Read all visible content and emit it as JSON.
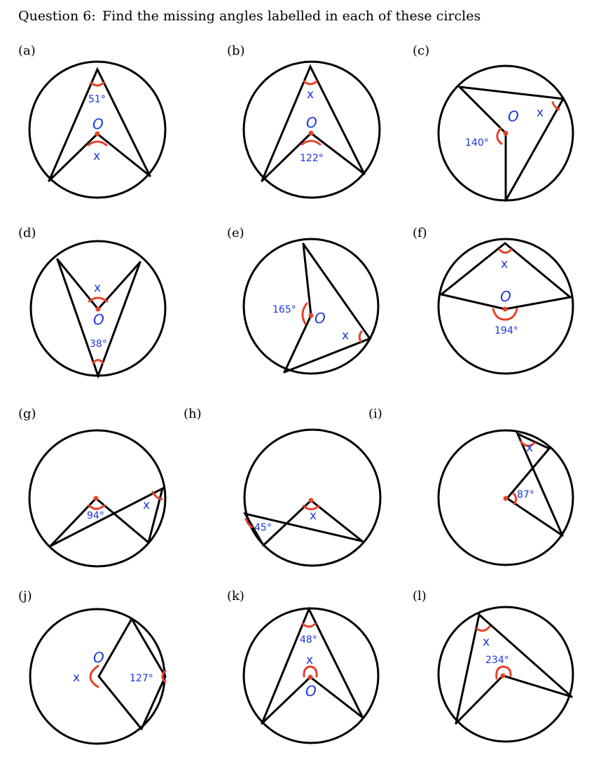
{
  "question": {
    "number": "Question 6:",
    "text": "Find the missing angles labelled in each of these circles"
  },
  "centre_label": "O",
  "unknown_label": "x",
  "parts": [
    {
      "label": "(a)",
      "given": "51°"
    },
    {
      "label": "(b)",
      "given": "122°"
    },
    {
      "label": "(c)",
      "given": "140°"
    },
    {
      "label": "(d)",
      "given": "38°"
    },
    {
      "label": "(e)",
      "given": "165°"
    },
    {
      "label": "(f)",
      "given": "194°"
    },
    {
      "label": "(g)",
      "given": "94°"
    },
    {
      "label": "(h)",
      "given": "45°"
    },
    {
      "label": "(i)",
      "given": "87°"
    },
    {
      "label": "(j)",
      "given": "127°"
    },
    {
      "label": "(k)",
      "given": "48°"
    },
    {
      "label": "(l)",
      "given": "234°"
    }
  ],
  "colors": {
    "line": "#000000",
    "angle_arc": "#e8412b",
    "label": "#1a35e0"
  }
}
